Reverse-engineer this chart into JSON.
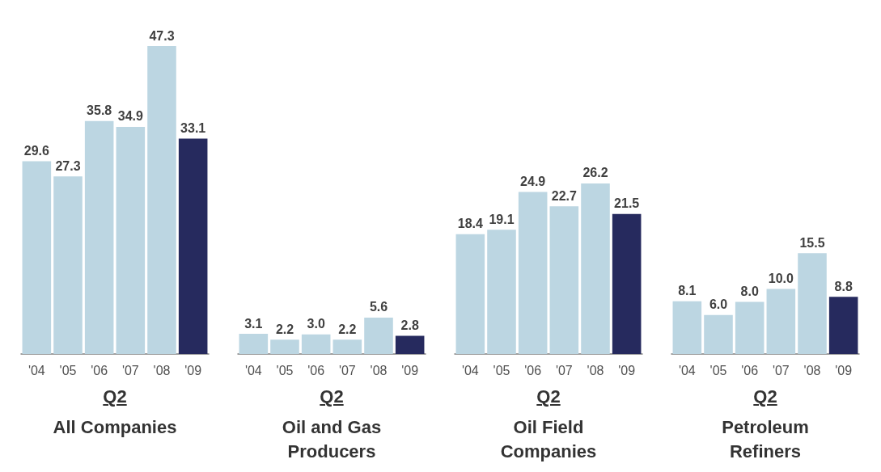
{
  "chart_data": [
    {
      "type": "bar",
      "title": "All Companies",
      "xlabel": "Q2",
      "categories": [
        "'04",
        "'05",
        "'06",
        "'07",
        "'08",
        "'09"
      ],
      "values": [
        29.6,
        27.3,
        35.8,
        34.9,
        47.3,
        33.1
      ],
      "value_labels": [
        "29.6",
        "27.3",
        "35.8",
        "34.9",
        "47.3",
        "33.1"
      ],
      "colors": [
        "#bcd6e2",
        "#bcd6e2",
        "#bcd6e2",
        "#bcd6e2",
        "#bcd6e2",
        "#262a5e"
      ]
    },
    {
      "type": "bar",
      "title": "Oil and Gas Producers",
      "xlabel": "Q2",
      "categories": [
        "'04",
        "'05",
        "'06",
        "'07",
        "'08",
        "'09"
      ],
      "values": [
        3.1,
        2.2,
        3.0,
        2.2,
        5.6,
        2.8
      ],
      "value_labels": [
        "3.1",
        "2.2",
        "3.0",
        "2.2",
        "5.6",
        "2.8"
      ],
      "colors": [
        "#bcd6e2",
        "#bcd6e2",
        "#bcd6e2",
        "#bcd6e2",
        "#bcd6e2",
        "#262a5e"
      ]
    },
    {
      "type": "bar",
      "title": "Oil Field Companies",
      "xlabel": "Q2",
      "categories": [
        "'04",
        "'05",
        "'06",
        "'07",
        "'08",
        "'09"
      ],
      "values": [
        18.4,
        19.1,
        24.9,
        22.7,
        26.2,
        21.5
      ],
      "value_labels": [
        "18.4",
        "19.1",
        "24.9",
        "22.7",
        "26.2",
        "21.5"
      ],
      "colors": [
        "#bcd6e2",
        "#bcd6e2",
        "#bcd6e2",
        "#bcd6e2",
        "#bcd6e2",
        "#262a5e"
      ]
    },
    {
      "type": "bar",
      "title": "Petroleum Refiners",
      "xlabel": "Q2",
      "categories": [
        "'04",
        "'05",
        "'06",
        "'07",
        "'08",
        "'09"
      ],
      "values": [
        8.1,
        6.0,
        8.0,
        10.0,
        15.5,
        8.8
      ],
      "value_labels": [
        "8.1",
        "6.0",
        "8.0",
        "10.0",
        "15.5",
        "8.8"
      ],
      "colors": [
        "#bcd6e2",
        "#bcd6e2",
        "#bcd6e2",
        "#bcd6e2",
        "#bcd6e2",
        "#262a5e"
      ]
    }
  ]
}
